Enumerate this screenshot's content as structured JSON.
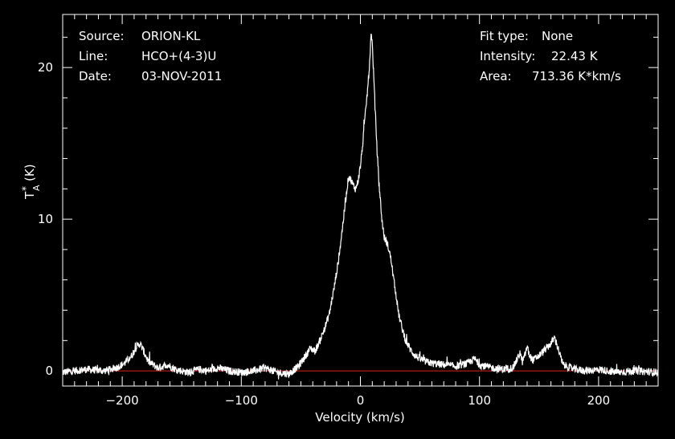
{
  "header": {
    "source_label": "Source:",
    "source_value": "ORION-KL",
    "line_label": "Line:",
    "line_value": "HCO+(4-3)U",
    "date_label": "Date:",
    "date_value": "03-NOV-2011",
    "fit_label": "Fit type:",
    "fit_value": "None",
    "intensity_label": "Intensity:",
    "intensity_value": "22.43 K",
    "area_label": "Area:",
    "area_value": "713.36 K*km/s"
  },
  "colors": {
    "background": "#000000",
    "foreground": "#ffffff",
    "baseline": "#e0201e"
  },
  "chart_data": {
    "type": "line",
    "title": "",
    "xlabel": "Velocity (km/s)",
    "ylabel_main": "T",
    "ylabel_sup": "*",
    "ylabel_sub": "A",
    "ylabel_unit": "(K)",
    "xlim": [
      -250,
      250
    ],
    "ylim": [
      -1.0,
      23.5
    ],
    "xticks": [
      -200,
      -100,
      0,
      100,
      200
    ],
    "xtick_labels": [
      "−200",
      "−100",
      "0",
      "100",
      "200"
    ],
    "yticks": [
      0,
      10,
      20
    ],
    "ytick_labels": [
      "0",
      "10",
      "20"
    ],
    "grid": false,
    "baseline_y": 0,
    "series": [
      {
        "x": [
          -250,
          -230,
          -215,
          -205,
          -198,
          -192,
          -188,
          -185,
          -182,
          -178,
          -170,
          -162,
          -155,
          -145,
          -135,
          -128,
          -120,
          -110,
          -100,
          -90,
          -80,
          -70,
          -60,
          -52,
          -46,
          -42,
          -38,
          -34,
          -30,
          -26,
          -22,
          -18,
          -15,
          -12,
          -10,
          -8,
          -6,
          -4,
          -2,
          0,
          2,
          4,
          6,
          8,
          9,
          10,
          12,
          14,
          16,
          18,
          20,
          22,
          24,
          26,
          28,
          30,
          32,
          35,
          38,
          42,
          46,
          50,
          55,
          60,
          70,
          80,
          90,
          96,
          100,
          110,
          120,
          128,
          132,
          134,
          136,
          138,
          140,
          142,
          145,
          150,
          155,
          160,
          163,
          166,
          170,
          180,
          190,
          200,
          215,
          230,
          250
        ],
        "y": [
          -0.1,
          0.1,
          0.0,
          0.2,
          0.5,
          1.0,
          1.6,
          1.8,
          1.3,
          0.6,
          0.2,
          0.4,
          0.1,
          -0.1,
          0.1,
          0.0,
          0.2,
          0.0,
          -0.1,
          0.0,
          0.2,
          -0.1,
          -0.2,
          0.3,
          1.0,
          1.5,
          1.3,
          2.0,
          2.8,
          3.8,
          5.5,
          7.5,
          9.5,
          11.5,
          12.8,
          12.6,
          12.2,
          12.0,
          12.5,
          13.5,
          15.0,
          16.8,
          18.5,
          20.5,
          22.43,
          21.5,
          18.0,
          14.5,
          12.0,
          10.0,
          8.8,
          8.5,
          8.0,
          7.2,
          6.0,
          5.0,
          3.8,
          2.8,
          2.0,
          1.4,
          1.0,
          0.8,
          0.6,
          0.5,
          0.4,
          0.3,
          0.5,
          0.8,
          0.4,
          0.2,
          0.1,
          0.2,
          0.8,
          1.2,
          0.6,
          1.0,
          1.6,
          1.0,
          0.7,
          1.0,
          1.4,
          1.8,
          2.2,
          1.5,
          0.4,
          0.1,
          0.0,
          0.1,
          -0.1,
          0.0,
          -0.1
        ]
      }
    ]
  }
}
